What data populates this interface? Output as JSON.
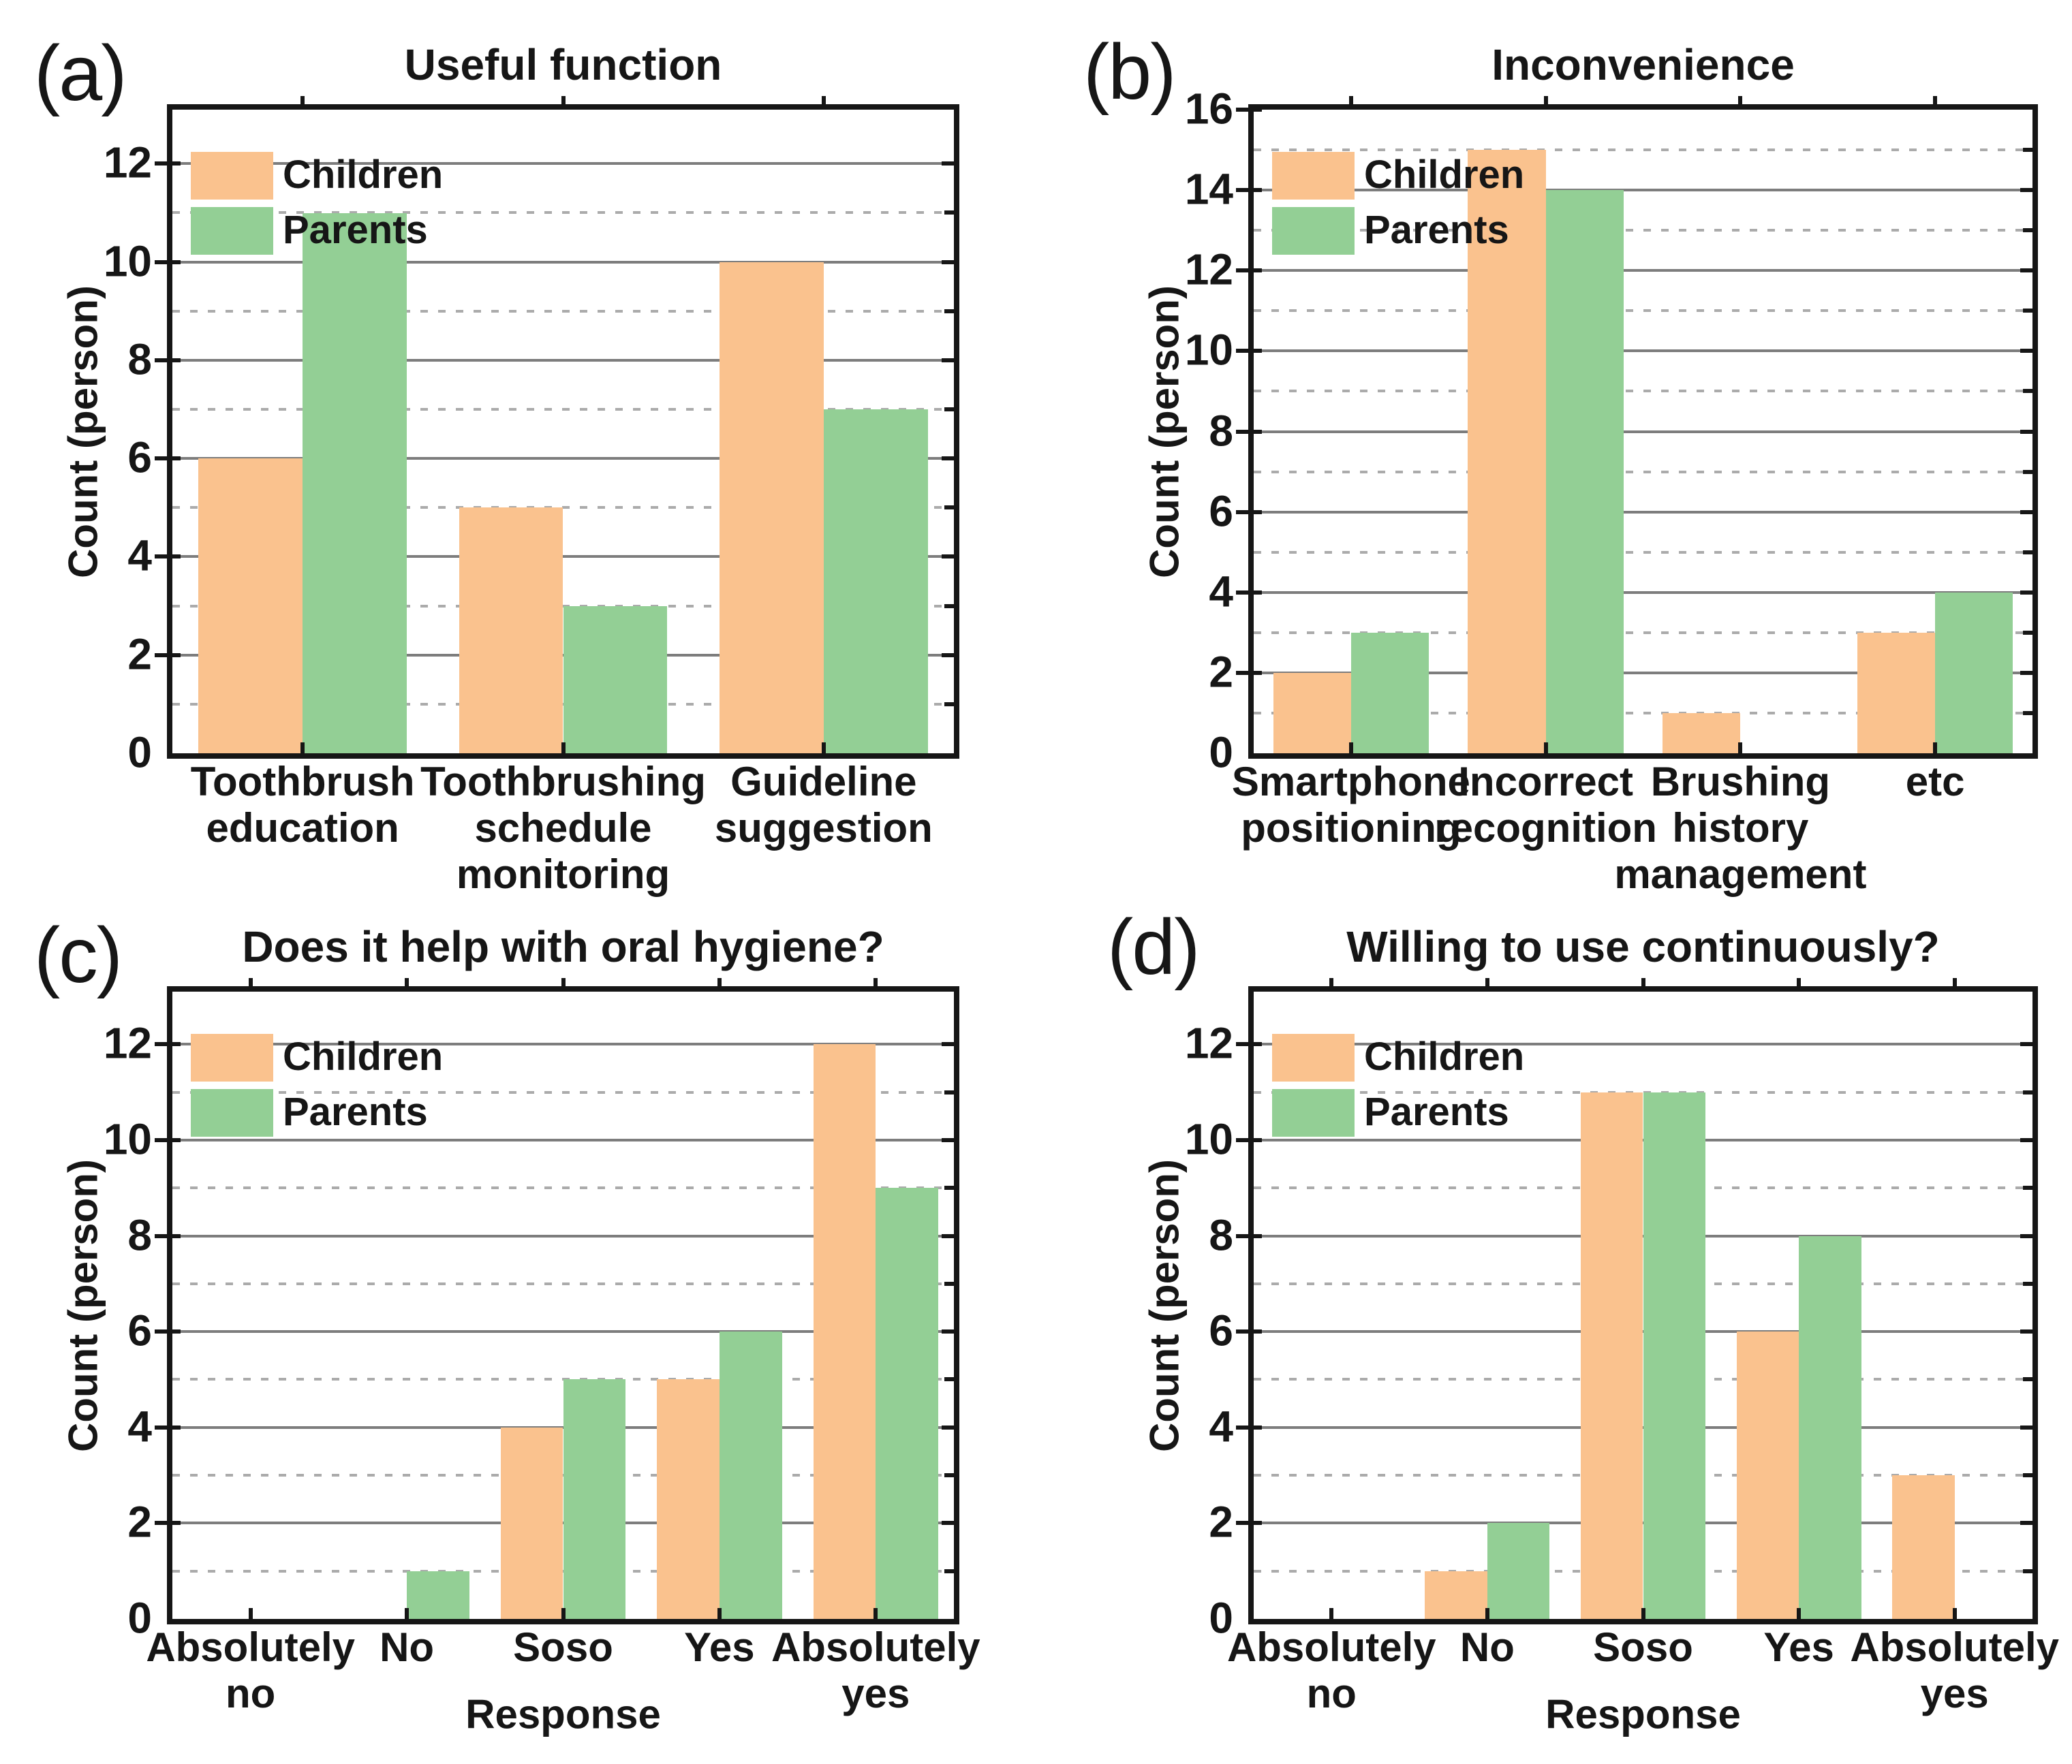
{
  "figure": {
    "background": "#ffffff",
    "series_colors": {
      "children": "#FAC28E",
      "parents": "#93CF95"
    },
    "grid_colors": {
      "major_solid": "#7d7d7d",
      "minor_dashed": "#ababab",
      "axis": "#161616"
    }
  },
  "chart_data": [
    {
      "type": "bar",
      "panel_label": "(a)",
      "title": "Useful function",
      "ylabel": "Count (person)",
      "xlabel": "",
      "categories": [
        [
          "Toothbrush",
          "education"
        ],
        [
          "Toothbrushing",
          "schedule",
          "monitoring"
        ],
        [
          "Guideline",
          "suggestion"
        ]
      ],
      "series": [
        {
          "name": "Children",
          "color": "#FAC28E",
          "values": [
            6,
            5,
            10
          ]
        },
        {
          "name": "Parents",
          "color": "#93CF95",
          "values": [
            11,
            3,
            7
          ]
        }
      ],
      "yticks": [
        0,
        2,
        4,
        6,
        8,
        10,
        12
      ],
      "ylim": [
        0,
        13.1
      ],
      "legend_position": "top-left",
      "grid": "horizontal; solid at even counts, dashed at odd counts"
    },
    {
      "type": "bar",
      "panel_label": "(b)",
      "title": "Inconvenience",
      "ylabel": "Count (person)",
      "xlabel": "",
      "categories": [
        [
          "Smartphone",
          "positioning"
        ],
        [
          "Incorrect",
          "recognition"
        ],
        [
          "Brushing",
          "history",
          "management"
        ],
        [
          "etc"
        ]
      ],
      "series": [
        {
          "name": "Children",
          "color": "#FAC28E",
          "values": [
            2,
            15,
            1,
            3
          ]
        },
        {
          "name": "Parents",
          "color": "#93CF95",
          "values": [
            3,
            14,
            0,
            4
          ]
        }
      ],
      "yticks": [
        0,
        2,
        4,
        6,
        8,
        10,
        12,
        14,
        16
      ],
      "ylim": [
        0,
        16
      ],
      "legend_position": "top-left",
      "grid": "horizontal; solid at even counts, dashed at odd counts"
    },
    {
      "type": "bar",
      "panel_label": "(c)",
      "title": "Does it help with oral hygiene?",
      "ylabel": "Count (person)",
      "xlabel": "Response",
      "categories": [
        [
          "Absolutely",
          "no"
        ],
        [
          "No"
        ],
        [
          "Soso"
        ],
        [
          "Yes"
        ],
        [
          "Absolutely",
          "yes"
        ]
      ],
      "series": [
        {
          "name": "Children",
          "color": "#FAC28E",
          "values": [
            0,
            0,
            4,
            5,
            12
          ]
        },
        {
          "name": "Parents",
          "color": "#93CF95",
          "values": [
            0,
            1,
            5,
            6,
            9
          ]
        }
      ],
      "yticks": [
        0,
        2,
        4,
        6,
        8,
        10,
        12
      ],
      "ylim": [
        0,
        13.1
      ],
      "legend_position": "top-left",
      "grid": "horizontal; solid at even counts, dashed at odd counts"
    },
    {
      "type": "bar",
      "panel_label": "(d)",
      "title": "Willing to use continuously?",
      "ylabel": "Count (person)",
      "xlabel": "Response",
      "categories": [
        [
          "Absolutely",
          "no"
        ],
        [
          "No"
        ],
        [
          "Soso"
        ],
        [
          "Yes"
        ],
        [
          "Absolutely",
          "yes"
        ]
      ],
      "series": [
        {
          "name": "Children",
          "color": "#FAC28E",
          "values": [
            0,
            1,
            11,
            6,
            3
          ]
        },
        {
          "name": "Parents",
          "color": "#93CF95",
          "values": [
            0,
            2,
            11,
            8,
            0
          ]
        }
      ],
      "yticks": [
        0,
        2,
        4,
        6,
        8,
        10,
        12
      ],
      "ylim": [
        0,
        13.1
      ],
      "legend_position": "top-left",
      "grid": "horizontal; solid at even counts, dashed at odd counts"
    }
  ]
}
